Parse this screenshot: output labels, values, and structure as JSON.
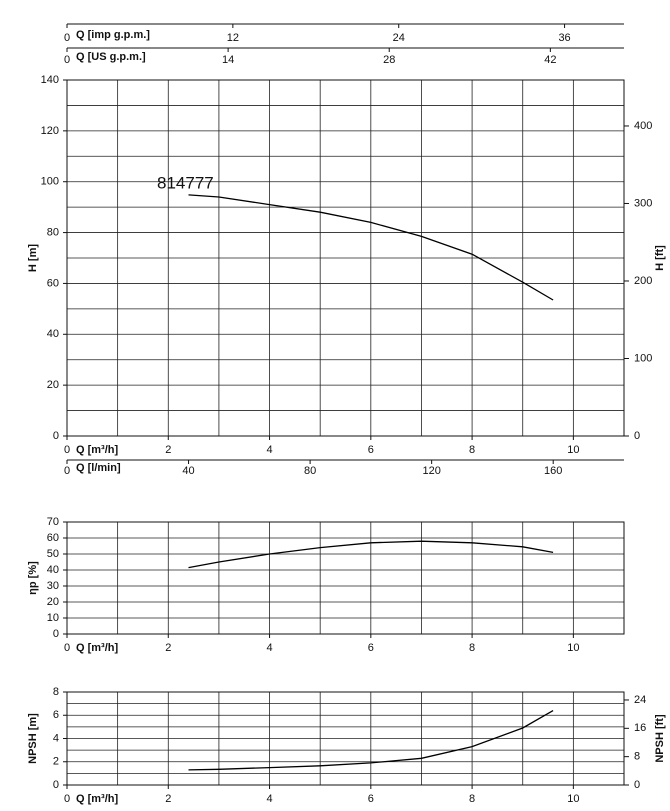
{
  "chart_data": [
    {
      "type": "line",
      "annotation": "814777",
      "xlabel": "Q [m³/h]",
      "xlim": [
        0,
        11
      ],
      "xticks": [
        0,
        2,
        4,
        6,
        8,
        10
      ],
      "minor_xticks": [
        1,
        3,
        5,
        7,
        9,
        11
      ],
      "ylabel": "H [m]",
      "ylim": [
        0,
        140
      ],
      "yticks": [
        0,
        20,
        40,
        60,
        80,
        100,
        120,
        140
      ],
      "minor_yticks": [
        10,
        30,
        50,
        70,
        90,
        110,
        130
      ],
      "y2label": "H [ft]",
      "y2lim": [
        0,
        459.3
      ],
      "y2ticks": [
        0,
        100,
        200,
        300,
        400
      ],
      "secondary_x_axes": [
        {
          "label": "Q [imp g.p.m.]",
          "position": "top",
          "xlim": [
            0,
            40.3
          ],
          "xticks": [
            0,
            12,
            24,
            36
          ]
        },
        {
          "label": "Q [US g.p.m.]",
          "position": "top",
          "xlim": [
            0,
            48.4
          ],
          "xticks": [
            0,
            14,
            28,
            42
          ]
        },
        {
          "label": "Q [l/min]",
          "position": "bottom",
          "xlim": [
            0,
            183.3
          ],
          "xticks": [
            0,
            40,
            80,
            120,
            160
          ]
        }
      ],
      "grid": true,
      "x": [
        2.4,
        3,
        4,
        5,
        6,
        7,
        8,
        9,
        9.6
      ],
      "series": [
        {
          "color": "#000000",
          "values": [
            94.8,
            94,
            91,
            88,
            84,
            78.5,
            71.5,
            60.5,
            53.5
          ]
        }
      ]
    },
    {
      "type": "line",
      "xlabel": "Q [m³/h]",
      "xlim": [
        0,
        11
      ],
      "xticks": [
        0,
        2,
        4,
        6,
        8,
        10
      ],
      "minor_xticks": [
        1,
        3,
        5,
        7,
        9,
        11
      ],
      "ylabel": "ηp [%]",
      "ylim": [
        0,
        70
      ],
      "yticks": [
        0,
        10,
        20,
        30,
        40,
        50,
        60,
        70
      ],
      "grid": true,
      "x": [
        2.4,
        3,
        4,
        5,
        6,
        7,
        8,
        9,
        9.6
      ],
      "series": [
        {
          "color": "#000000",
          "values": [
            41.5,
            45,
            50,
            54,
            57,
            58,
            57,
            54.5,
            51
          ]
        }
      ]
    },
    {
      "type": "line",
      "xlabel": "Q [m³/h]",
      "xlim": [
        0,
        11
      ],
      "xticks": [
        0,
        2,
        4,
        6,
        8,
        10
      ],
      "minor_xticks": [
        1,
        3,
        5,
        7,
        9,
        11
      ],
      "ylabel": "NPSH [m]",
      "ylim": [
        0,
        8
      ],
      "yticks": [
        0,
        2,
        4,
        6,
        8
      ],
      "minor_yticks": [
        1,
        3,
        5,
        7
      ],
      "y2label": "NPSH [ft]",
      "y2lim": [
        0,
        26.25
      ],
      "y2ticks": [
        0,
        8,
        16,
        24
      ],
      "grid": true,
      "x": [
        2.4,
        3,
        4,
        5,
        6,
        7,
        8,
        9,
        9.6
      ],
      "series": [
        {
          "color": "#000000",
          "values": [
            1.3,
            1.35,
            1.5,
            1.65,
            1.9,
            2.3,
            3.3,
            4.9,
            6.4
          ]
        }
      ]
    }
  ]
}
